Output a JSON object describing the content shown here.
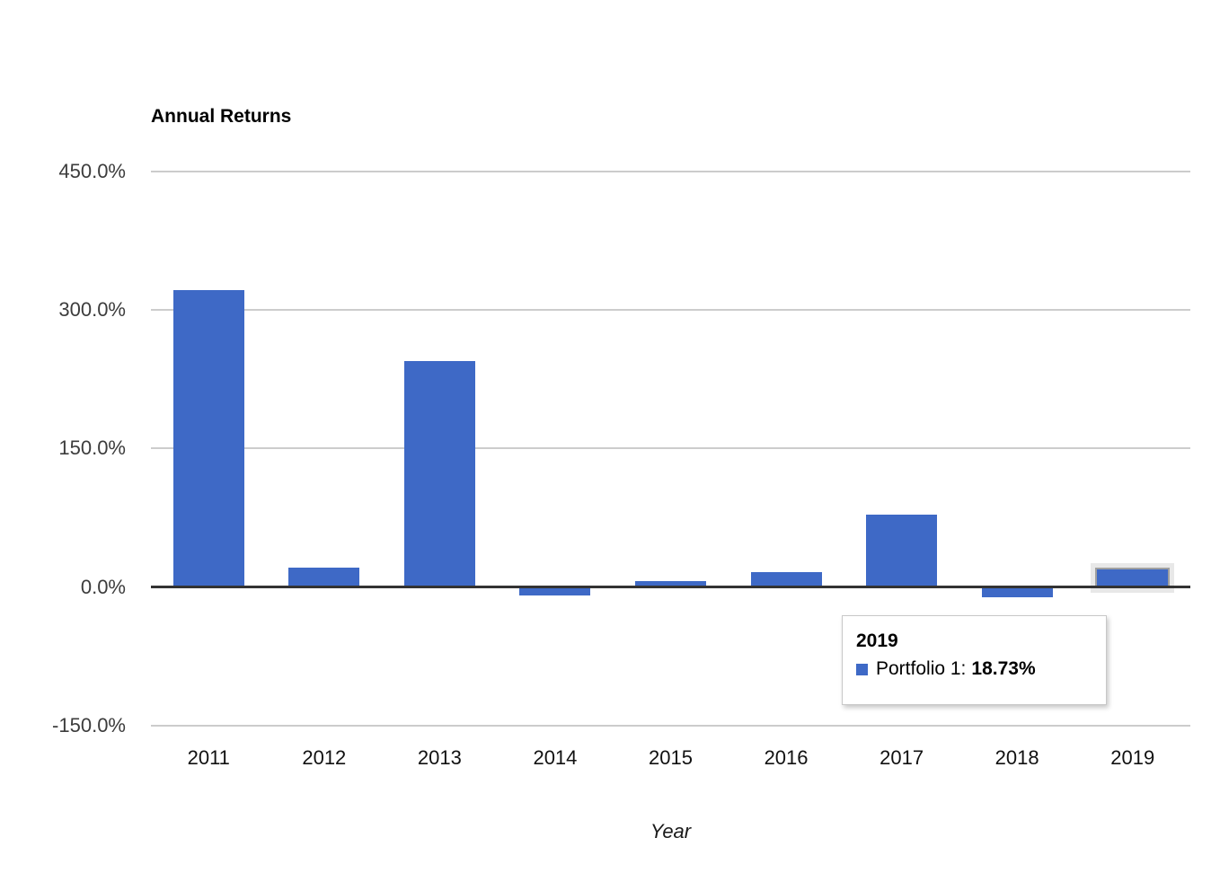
{
  "chart_data": {
    "type": "bar",
    "title": "Annual Returns",
    "xlabel": "Year",
    "ylabel": "",
    "categories": [
      "2011",
      "2012",
      "2013",
      "2014",
      "2015",
      "2016",
      "2017",
      "2018",
      "2019"
    ],
    "series": [
      {
        "name": "Portfolio 1",
        "values": [
          322,
          20.5,
          245,
          -9.7,
          6.8,
          15.6,
          78,
          -11.6,
          18.73
        ]
      }
    ],
    "ylim": [
      -150,
      450
    ],
    "yticks": {
      "values": [
        450,
        300,
        150,
        0,
        -150
      ],
      "labels": [
        "450.0%",
        "300.0%",
        "150.0%",
        "0.0%",
        "-150.0%"
      ]
    },
    "grid": true,
    "legend_position": "none",
    "bar_color": "#3e69c6",
    "highlighted_category": "2019"
  },
  "tooltip": {
    "title": "2019",
    "series_label": "Portfolio 1:",
    "value": "18.73%",
    "marker_color": "#3e69c6"
  },
  "colors": {
    "gridline": "#cccccc",
    "zero_axis": "#333333",
    "y_label": "#3c3c3c",
    "x_label": "#111111",
    "highlight_inner": "#a0a0a0",
    "highlight_outer": "#e8e8e8"
  }
}
